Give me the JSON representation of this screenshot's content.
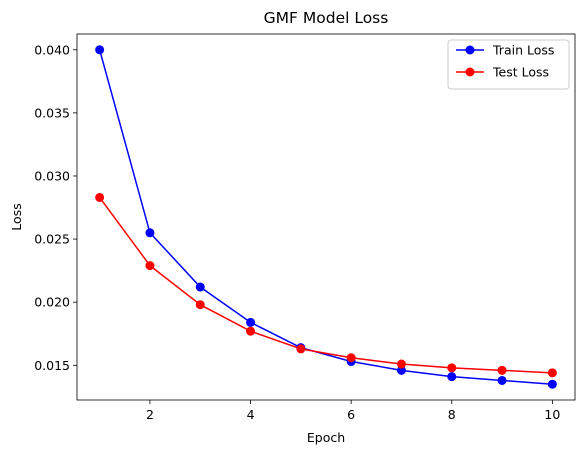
{
  "chart_data": {
    "type": "line",
    "title": "GMF Model Loss",
    "xlabel": "Epoch",
    "ylabel": "Loss",
    "x": [
      1,
      2,
      3,
      4,
      5,
      6,
      7,
      8,
      9,
      10
    ],
    "xlim": [
      0.55,
      10.45
    ],
    "ylim": [
      0.01225,
      0.04125
    ],
    "xticks": [
      2,
      4,
      6,
      8,
      10
    ],
    "xtick_labels": [
      "2",
      "4",
      "6",
      "8",
      "10"
    ],
    "yticks": [
      0.015,
      0.02,
      0.025,
      0.03,
      0.035,
      0.04
    ],
    "ytick_labels": [
      "0.015",
      "0.020",
      "0.025",
      "0.030",
      "0.035",
      "0.040"
    ],
    "grid": false,
    "legend_position": "top-right",
    "series": [
      {
        "name": "Train Loss",
        "color": "#0000ff",
        "marker": "circle",
        "values": [
          0.04,
          0.0255,
          0.0212,
          0.0184,
          0.0164,
          0.0153,
          0.0146,
          0.0141,
          0.0138,
          0.0135
        ]
      },
      {
        "name": "Test Loss",
        "color": "#ff0000",
        "marker": "circle",
        "values": [
          0.0283,
          0.0229,
          0.0198,
          0.0177,
          0.0163,
          0.0156,
          0.0151,
          0.0148,
          0.0146,
          0.0144
        ]
      }
    ]
  }
}
